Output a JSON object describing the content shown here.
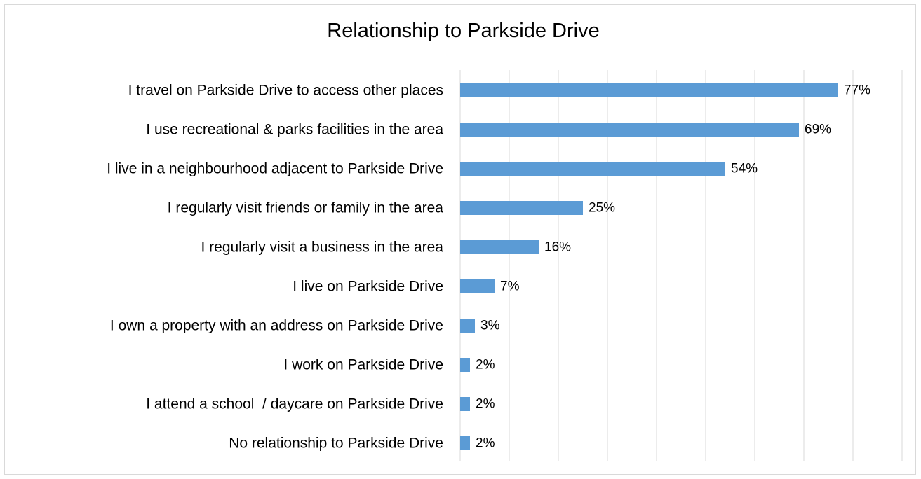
{
  "chart_data": {
    "type": "bar",
    "orientation": "horizontal",
    "title": "Relationship to Parkside Drive",
    "xlabel": "",
    "ylabel": "",
    "categories": [
      "I travel on Parkside Drive to access other places",
      "I use recreational & parks facilities in the area",
      "I live in a neighbourhood adjacent to Parkside Drive",
      "I regularly visit friends or family in the area",
      "I regularly visit a business in the area",
      "I live on Parkside Drive",
      "I own a property with an address on Parkside Drive",
      "I work on Parkside Drive",
      "I attend a school  / daycare on Parkside Drive",
      "No relationship to Parkside Drive"
    ],
    "values": [
      77,
      69,
      54,
      25,
      16,
      7,
      3,
      2,
      2,
      2
    ],
    "data_labels": [
      "77%",
      "69%",
      "54%",
      "25%",
      "16%",
      "7%",
      "3%",
      "2%",
      "2%",
      "2%"
    ],
    "xlim": [
      0,
      90
    ],
    "grid": "vertical",
    "tick_labels_visible": false,
    "legend": "none",
    "bar_color": "#5b9bd5",
    "grid_color": "#d9d9d9"
  }
}
